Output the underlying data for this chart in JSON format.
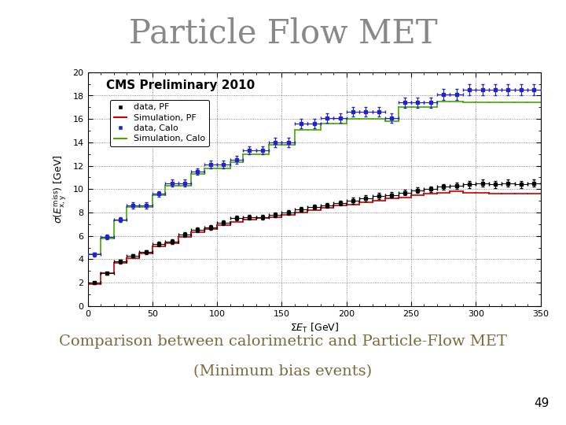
{
  "title": "Particle Flow MET",
  "subtitle_text": "CMS Preliminary 2010",
  "caption_line1": "Comparison between calorimetric and Particle-Flow MET",
  "caption_line2": "(Minimum bias events)",
  "page_number": "49",
  "xlim": [
    0,
    350
  ],
  "ylim": [
    0,
    20
  ],
  "xticks": [
    0,
    50,
    100,
    150,
    200,
    250,
    300,
    350
  ],
  "yticks": [
    0,
    2,
    4,
    6,
    8,
    10,
    12,
    14,
    16,
    18,
    20
  ],
  "data_PF_x": [
    5,
    15,
    25,
    35,
    45,
    55,
    65,
    75,
    85,
    95,
    105,
    115,
    125,
    135,
    145,
    155,
    165,
    175,
    185,
    195,
    205,
    215,
    225,
    235,
    245,
    255,
    265,
    275,
    285,
    295,
    305,
    315,
    325,
    335,
    345
  ],
  "data_PF_y": [
    2.0,
    2.8,
    3.8,
    4.3,
    4.6,
    5.3,
    5.5,
    6.1,
    6.5,
    6.7,
    7.1,
    7.5,
    7.6,
    7.6,
    7.8,
    8.0,
    8.3,
    8.5,
    8.6,
    8.8,
    9.0,
    9.2,
    9.4,
    9.5,
    9.7,
    9.9,
    10.0,
    10.2,
    10.3,
    10.4,
    10.5,
    10.4,
    10.5,
    10.4,
    10.5
  ],
  "data_PF_xerr": [
    5,
    5,
    5,
    5,
    5,
    5,
    5,
    5,
    5,
    5,
    5,
    5,
    5,
    5,
    5,
    5,
    5,
    5,
    5,
    5,
    5,
    5,
    5,
    5,
    5,
    5,
    5,
    5,
    5,
    5,
    5,
    5,
    5,
    5,
    5
  ],
  "data_PF_yerr": [
    0.1,
    0.1,
    0.15,
    0.15,
    0.15,
    0.2,
    0.2,
    0.2,
    0.2,
    0.2,
    0.2,
    0.2,
    0.2,
    0.2,
    0.2,
    0.2,
    0.2,
    0.2,
    0.2,
    0.2,
    0.25,
    0.25,
    0.25,
    0.25,
    0.25,
    0.25,
    0.25,
    0.25,
    0.25,
    0.3,
    0.3,
    0.3,
    0.3,
    0.3,
    0.3
  ],
  "sim_PF_y": [
    1.9,
    2.8,
    3.7,
    4.1,
    4.5,
    5.1,
    5.4,
    5.9,
    6.3,
    6.6,
    6.9,
    7.2,
    7.4,
    7.5,
    7.6,
    7.8,
    8.0,
    8.2,
    8.4,
    8.6,
    8.7,
    8.9,
    9.0,
    9.2,
    9.3,
    9.5,
    9.6,
    9.7,
    9.8,
    9.7,
    9.7,
    9.6,
    9.6,
    9.6,
    9.6
  ],
  "data_Calo_x": [
    5,
    15,
    25,
    35,
    45,
    55,
    65,
    75,
    85,
    95,
    105,
    115,
    125,
    135,
    145,
    155,
    165,
    175,
    185,
    195,
    205,
    215,
    225,
    235,
    245,
    255,
    265,
    275,
    285,
    295,
    305,
    315,
    325,
    335,
    345
  ],
  "data_Calo_y": [
    4.4,
    5.9,
    7.4,
    8.6,
    8.6,
    9.6,
    10.5,
    10.5,
    11.5,
    12.1,
    12.1,
    12.5,
    13.3,
    13.3,
    14.0,
    14.0,
    15.6,
    15.6,
    16.1,
    16.1,
    16.6,
    16.6,
    16.6,
    16.1,
    17.4,
    17.4,
    17.4,
    18.1,
    18.1,
    18.5,
    18.5,
    18.5,
    18.5,
    18.5,
    18.5
  ],
  "data_Calo_xerr": [
    5,
    5,
    5,
    5,
    5,
    5,
    5,
    5,
    5,
    5,
    5,
    5,
    5,
    5,
    5,
    5,
    5,
    5,
    5,
    5,
    5,
    5,
    5,
    5,
    5,
    5,
    5,
    5,
    5,
    5,
    5,
    5,
    5,
    5,
    5
  ],
  "data_Calo_yerr": [
    0.15,
    0.2,
    0.2,
    0.25,
    0.25,
    0.25,
    0.3,
    0.3,
    0.3,
    0.35,
    0.35,
    0.35,
    0.35,
    0.35,
    0.4,
    0.4,
    0.4,
    0.4,
    0.4,
    0.4,
    0.4,
    0.4,
    0.4,
    0.4,
    0.45,
    0.45,
    0.45,
    0.45,
    0.45,
    0.5,
    0.5,
    0.5,
    0.5,
    0.5,
    0.5
  ],
  "sim_Calo_y": [
    4.4,
    5.8,
    7.3,
    8.5,
    8.5,
    9.5,
    10.3,
    10.3,
    11.3,
    11.8,
    11.8,
    12.3,
    13.0,
    13.0,
    13.8,
    13.8,
    15.1,
    15.1,
    15.6,
    15.6,
    16.0,
    16.0,
    16.0,
    15.8,
    17.0,
    17.0,
    17.0,
    17.5,
    17.5,
    17.4,
    17.4,
    17.4,
    17.4,
    17.4,
    17.4
  ],
  "color_data_PF": "#000000",
  "color_sim_PF": "#cc0000",
  "color_data_Calo": "#2222cc",
  "color_sim_Calo": "#44aa00",
  "title_color": "#888888",
  "caption_color": "#7a6a3a",
  "legend_labels": [
    "data, PF",
    "Simulation, PF",
    "data, Calo",
    "Simulation, Calo"
  ],
  "title_fontsize": 30,
  "axis_fontsize": 9,
  "legend_fontsize": 8,
  "cms_label_fontsize": 11,
  "caption_fontsize": 14,
  "page_fontsize": 11
}
